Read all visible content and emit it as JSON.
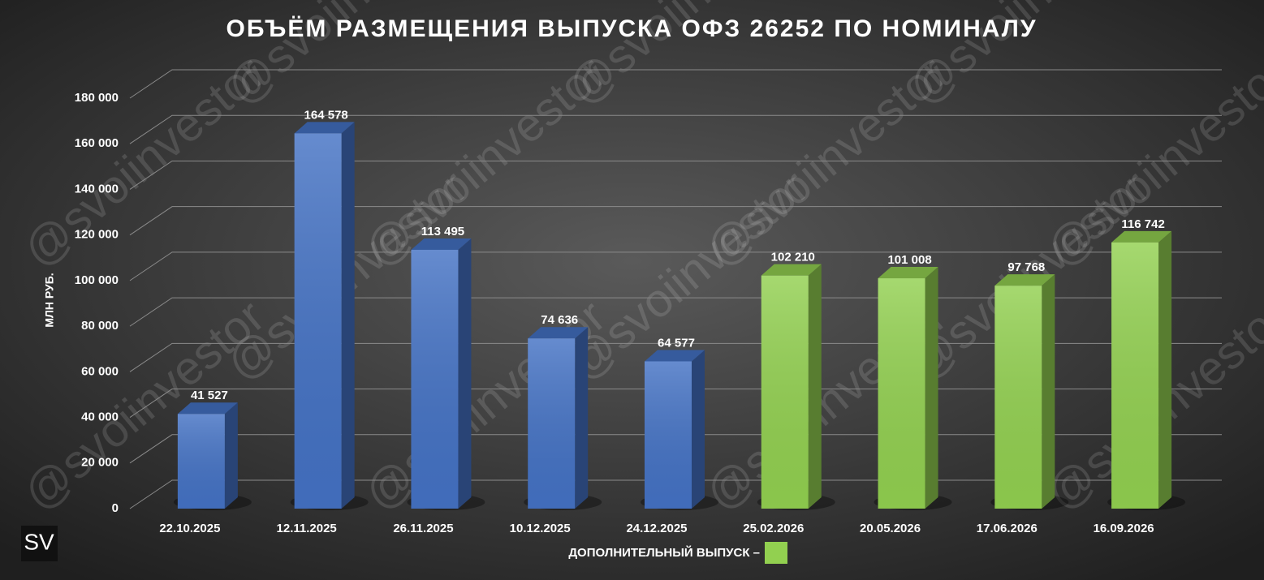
{
  "chart_data": {
    "type": "bar3d",
    "title": "ОБЪЁМ РАЗМЕЩЕНИЯ ВЫПУСКА ОФЗ 26252 ПО НОМИНАЛУ",
    "y_label": "МЛН РУБ.",
    "categories": [
      "22.10.2025",
      "12.11.2025",
      "26.11.2025",
      "10.12.2025",
      "24.12.2025",
      "25.02.2026",
      "20.05.2026",
      "17.06.2026",
      "16.09.2026"
    ],
    "values": [
      41527,
      164578,
      113495,
      74636,
      64577,
      102210,
      101008,
      97768,
      116742
    ],
    "value_labels": [
      "41 527",
      "164 578",
      "113 495",
      "74 636",
      "64 577",
      "102 210",
      "101 008",
      "97 768",
      "116 742"
    ],
    "colors": [
      "#4472c4",
      "#4472c4",
      "#4472c4",
      "#4472c4",
      "#4472c4",
      "#92d050",
      "#92d050",
      "#92d050",
      "#92d050"
    ],
    "ylim": [
      0,
      180000
    ],
    "yticks": [
      0,
      {
        "value": 20000,
        "label": "20 000"
      },
      {
        "value": 40000,
        "label": "40 000"
      },
      {
        "value": 60000,
        "label": "60 000"
      },
      {
        "value": 80000,
        "label": "80 000"
      },
      {
        "value": 100000,
        "label": "100 000"
      },
      {
        "value": 120000,
        "label": "120 000"
      },
      {
        "value": 140000,
        "label": "140 000"
      },
      {
        "value": 160000,
        "label": "160 000"
      },
      {
        "value": 180000,
        "label": "180 000"
      }
    ],
    "grid": true,
    "legend": {
      "label": "ДОПОЛНИТЕЛЬНЫЙ ВЫПУСК –",
      "color": "#92d050"
    },
    "watermark": "@svoiinvestor",
    "logo": "SV"
  }
}
